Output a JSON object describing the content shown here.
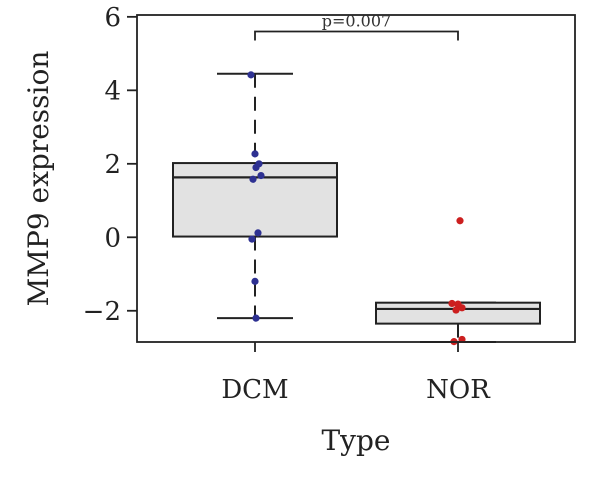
{
  "chart_data": {
    "type": "box",
    "title": "",
    "xlabel": "Type",
    "ylabel": "MMP9 expression",
    "ylim": [
      -2.85,
      6.05
    ],
    "yticks": [
      -2,
      0,
      2,
      4,
      6
    ],
    "ytick_labels": [
      "−2",
      "0",
      "2",
      "4",
      "6"
    ],
    "categories": [
      "DCM",
      "NOR"
    ],
    "boxes": [
      {
        "name": "DCM",
        "whisker_low": -2.2,
        "q1": 0.02,
        "median": 1.63,
        "q3": 2.02,
        "whisker_high": 4.45,
        "points": [
          4.42,
          2.27,
          2.0,
          1.9,
          1.68,
          1.58,
          0.12,
          -0.05,
          -1.2,
          -2.2
        ],
        "point_color": "#2e3192"
      },
      {
        "name": "NOR",
        "whisker_low": -2.85,
        "q1": -2.35,
        "median": -1.95,
        "q3": -1.78,
        "whisker_high": -1.78,
        "points": [
          0.45,
          -1.8,
          -1.82,
          -1.92,
          -1.98,
          -2.78,
          -2.84
        ],
        "point_color": "#cc1f1f"
      }
    ],
    "annotation": {
      "text": "p=0.007",
      "between": [
        "DCM",
        "NOR"
      ],
      "y": 5.6
    },
    "box_fill": "#e2e2e2",
    "line_color": "#222222",
    "grid": false,
    "legend": "none"
  }
}
